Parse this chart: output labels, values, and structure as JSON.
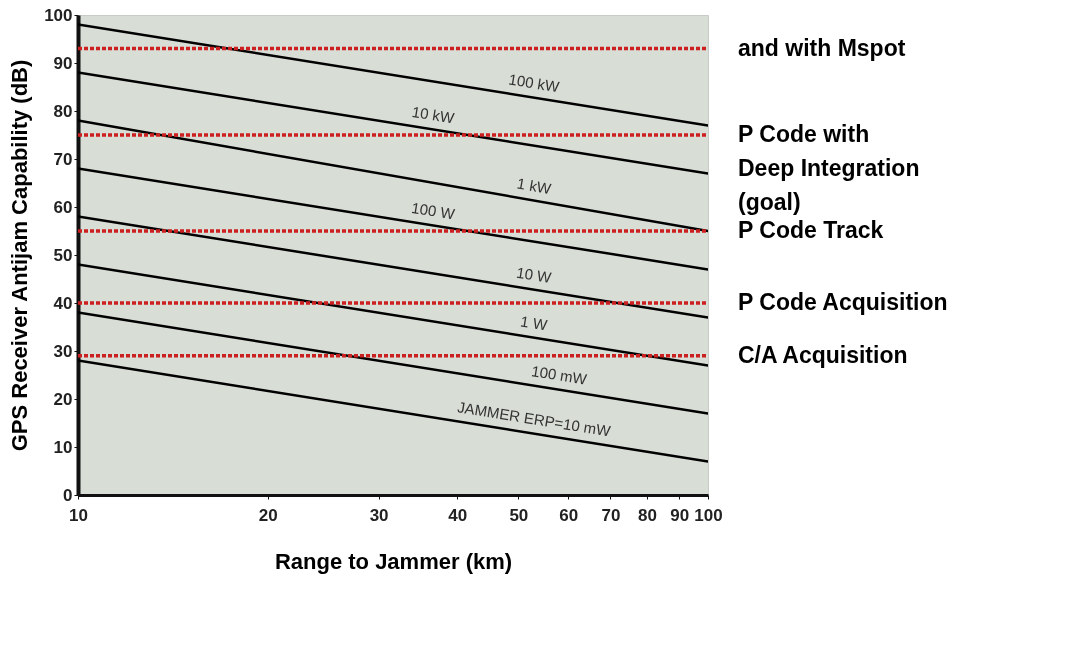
{
  "chart_data": {
    "type": "line",
    "xlabel": "Range to Jammer (km)",
    "ylabel": "GPS Receiver Antijam Capability (dB)",
    "log": "x",
    "x": [
      10,
      100
    ],
    "xlim": [
      10,
      100
    ],
    "xticks": [
      10,
      20,
      30,
      40,
      50,
      60,
      70,
      80,
      90,
      100
    ],
    "ylim": [
      0,
      100
    ],
    "yticks": [
      0,
      10,
      20,
      30,
      40,
      50,
      60,
      70,
      80,
      90,
      100
    ],
    "legend": false,
    "grid": false,
    "line_style": "solid",
    "marker": "none",
    "series": [
      {
        "name": "100 kW",
        "color": "#000000",
        "values": [
          98,
          77
        ]
      },
      {
        "name": "10 kW",
        "color": "#000000",
        "values": [
          88,
          67
        ]
      },
      {
        "name": "1 kW",
        "color": "#000000",
        "values": [
          78,
          55
        ]
      },
      {
        "name": "100 W",
        "color": "#000000",
        "values": [
          68,
          47
        ]
      },
      {
        "name": "10 W",
        "color": "#000000",
        "values": [
          58,
          37
        ]
      },
      {
        "name": "1 W",
        "color": "#000000",
        "values": [
          48,
          27
        ]
      },
      {
        "name": "100 mW",
        "color": "#000000",
        "values": [
          38,
          17
        ]
      },
      {
        "name": "JAMMER ERP=10 mW",
        "color": "#000000",
        "values": [
          28,
          7
        ]
      }
    ],
    "ref_lines": [
      {
        "axis": "y",
        "value": 93,
        "label": "and with Mspot",
        "color": "#cc1f1f",
        "line_style": "dotted"
      },
      {
        "axis": "y",
        "value": 75,
        "label": "P Code with\nDeep Integration\n(goal)",
        "color": "#cc1f1f",
        "line_style": "dotted"
      },
      {
        "axis": "y",
        "value": 55,
        "label": "P Code Track",
        "color": "#cc1f1f",
        "line_style": "dotted"
      },
      {
        "axis": "y",
        "value": 40,
        "label": "P Code Acquisition",
        "color": "#cc1f1f",
        "line_style": "dotted"
      },
      {
        "axis": "y",
        "value": 29,
        "label": "C/A Acquisition",
        "color": "#cc1f1f",
        "line_style": "dotted"
      }
    ]
  }
}
